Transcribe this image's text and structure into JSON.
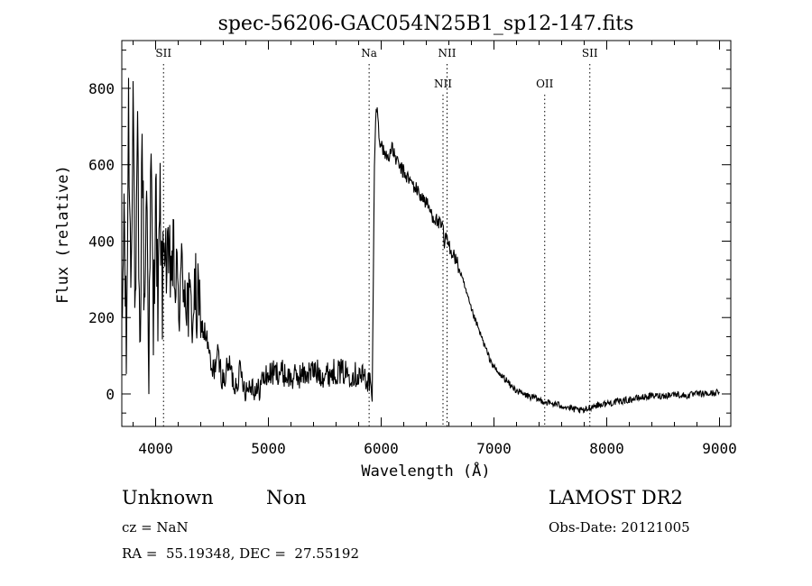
{
  "chart_data": {
    "type": "line",
    "title": "spec-56206-GAC054N25B1_sp12-147.fits",
    "xlabel": "Wavelength (Å)",
    "ylabel": "Flux (relative)",
    "xlim": [
      3700,
      9100
    ],
    "ylim": [
      -85,
      925
    ],
    "x_ticks": [
      4000,
      5000,
      6000,
      7000,
      8000,
      9000
    ],
    "x_tick_labels": [
      "4000",
      "5000",
      "6000",
      "7000",
      "8000",
      "9000"
    ],
    "y_ticks": [
      0,
      200,
      400,
      600,
      800
    ],
    "y_tick_labels": [
      "0",
      "200",
      "400",
      "600",
      "800"
    ],
    "grid": false,
    "legend": "none",
    "line_color": "#000000",
    "series": [
      {
        "x": [
          3700,
          3720,
          3740,
          3760,
          3780,
          3800,
          3820,
          3840,
          3860,
          3880,
          3900,
          3920,
          3940,
          3960,
          3980,
          4000,
          4020,
          4040,
          4060,
          4080,
          4100,
          4150,
          4200,
          4250,
          4300,
          4350,
          4400,
          4450,
          4500,
          4550,
          4600,
          4650,
          4700,
          4750,
          4800,
          4850,
          4900,
          4950,
          5000,
          5100,
          5200,
          5300,
          5400,
          5500,
          5600,
          5700,
          5800,
          5850,
          5900,
          5920,
          5930,
          5940,
          5950,
          5960,
          5970,
          5980,
          6000,
          6050,
          6100,
          6150,
          6200,
          6250,
          6300,
          6350,
          6400,
          6450,
          6500,
          6550,
          6560,
          6570,
          6580,
          6600,
          6650,
          6700,
          6750,
          6800,
          6850,
          6900,
          6950,
          7000,
          7050,
          7100,
          7150,
          7200,
          7250,
          7300,
          7350,
          7400,
          7450,
          7500,
          7600,
          7700,
          7800,
          7850,
          7900,
          8000,
          8100,
          8200,
          8300,
          8400,
          8500,
          8600,
          8700,
          8800,
          8900,
          9000
        ],
        "y": [
          100,
          500,
          80,
          750,
          300,
          820,
          150,
          650,
          50,
          700,
          200,
          560,
          100,
          600,
          150,
          580,
          200,
          500,
          250,
          450,
          300,
          350,
          250,
          320,
          200,
          250,
          180,
          150,
          50,
          100,
          30,
          80,
          20,
          60,
          10,
          30,
          0,
          40,
          50,
          60,
          40,
          50,
          60,
          50,
          60,
          55,
          50,
          45,
          30,
          -20,
          300,
          600,
          700,
          760,
          720,
          680,
          650,
          620,
          640,
          600,
          580,
          560,
          540,
          520,
          500,
          470,
          450,
          430,
          380,
          420,
          400,
          390,
          360,
          320,
          270,
          220,
          180,
          140,
          100,
          70,
          50,
          40,
          20,
          10,
          0,
          -5,
          -10,
          -15,
          -20,
          -25,
          -30,
          -40,
          -45,
          -35,
          -30,
          -25,
          -20,
          -15,
          -10,
          -5,
          -5,
          0,
          -5,
          0,
          0,
          5
        ]
      }
    ],
    "annotations": [
      {
        "label": "SII",
        "x": 4070,
        "level": 1
      },
      {
        "label": "Na",
        "x": 5893,
        "level": 1
      },
      {
        "label": "NII",
        "x": 6548,
        "level": 2
      },
      {
        "label": "NII",
        "x": 6584,
        "level": 1
      },
      {
        "label": "OII",
        "x": 7450,
        "level": 2
      },
      {
        "label": "SII",
        "x": 7850,
        "level": 1
      }
    ]
  },
  "info": {
    "object_class": "Unknown",
    "subclass": "Non",
    "survey": "LAMOST DR2",
    "redshift": "cz = NaN",
    "obs_date": "Obs-Date: 20121005",
    "coords": "RA =  55.19348, DEC =  27.55192"
  }
}
